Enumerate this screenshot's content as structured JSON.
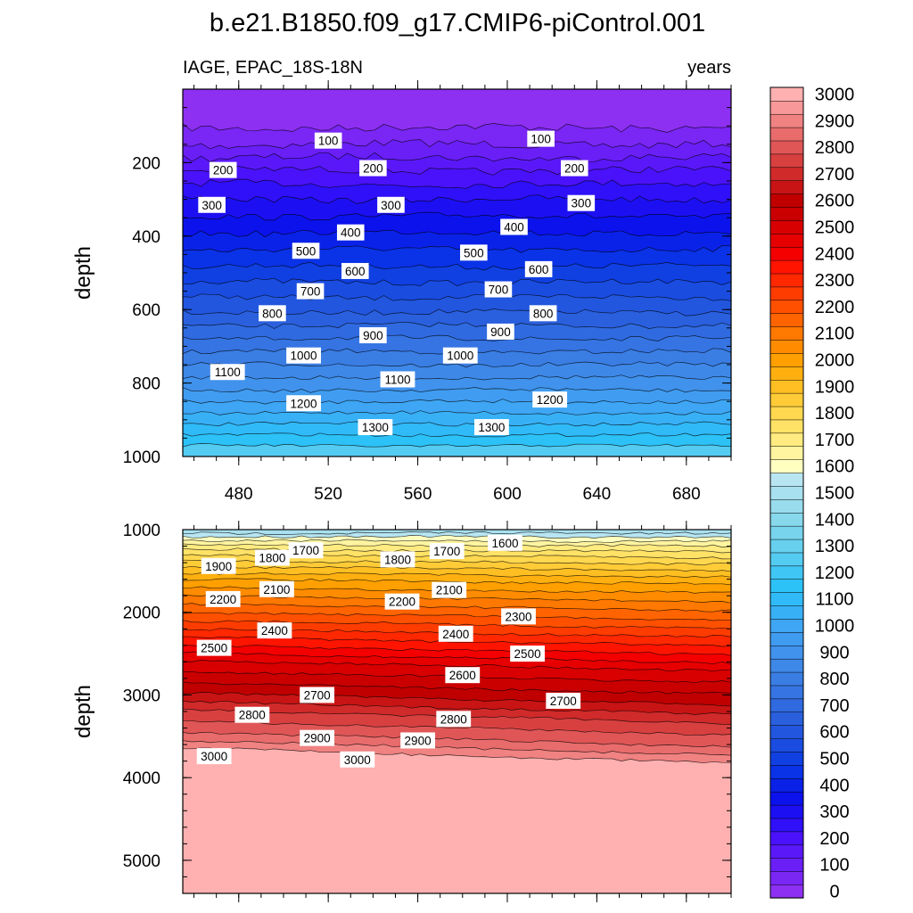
{
  "title": "b.e21.B1850.f09_g17.CMIP6-piControl.001",
  "subtitle_left": "IAGE, EPAC_18S-18N",
  "subtitle_right": "years",
  "chart_data": [
    {
      "type": "contour",
      "panel": "upper",
      "variable": "IAGE",
      "region": "EPAC_18S-18N",
      "units": "years",
      "ylabel": "depth",
      "xlabel": "",
      "xlim": [
        455,
        700
      ],
      "ylim": [
        1000,
        0
      ],
      "ylim_note": "depth increases downward",
      "xticks": [
        480,
        520,
        560,
        600,
        640,
        680
      ],
      "yticks": [
        200,
        400,
        600,
        800,
        1000
      ],
      "depth_profile": [
        [
          0,
          0
        ],
        [
          50,
          10
        ],
        [
          100,
          45
        ],
        [
          150,
          100
        ],
        [
          200,
          170
        ],
        [
          250,
          240
        ],
        [
          300,
          300
        ],
        [
          400,
          410
        ],
        [
          500,
          520
        ],
        [
          600,
          640
        ],
        [
          700,
          780
        ],
        [
          800,
          920
        ],
        [
          900,
          1080
        ],
        [
          1000,
          1250
        ]
      ],
      "contour_labels": [
        {
          "text": "100",
          "x": 520,
          "depth": 140
        },
        {
          "text": "100",
          "x": 615,
          "depth": 135
        },
        {
          "text": "200",
          "x": 473,
          "depth": 220
        },
        {
          "text": "200",
          "x": 540,
          "depth": 215
        },
        {
          "text": "200",
          "x": 630,
          "depth": 215
        },
        {
          "text": "300",
          "x": 468,
          "depth": 315
        },
        {
          "text": "300",
          "x": 548,
          "depth": 315
        },
        {
          "text": "300",
          "x": 633,
          "depth": 310
        },
        {
          "text": "400",
          "x": 530,
          "depth": 390
        },
        {
          "text": "400",
          "x": 603,
          "depth": 375
        },
        {
          "text": "500",
          "x": 510,
          "depth": 440
        },
        {
          "text": "500",
          "x": 585,
          "depth": 445
        },
        {
          "text": "600",
          "x": 532,
          "depth": 495
        },
        {
          "text": "600",
          "x": 614,
          "depth": 490
        },
        {
          "text": "700",
          "x": 512,
          "depth": 550
        },
        {
          "text": "700",
          "x": 596,
          "depth": 545
        },
        {
          "text": "800",
          "x": 495,
          "depth": 610
        },
        {
          "text": "800",
          "x": 616,
          "depth": 610
        },
        {
          "text": "900",
          "x": 540,
          "depth": 670
        },
        {
          "text": "900",
          "x": 597,
          "depth": 660
        },
        {
          "text": "1000",
          "x": 509,
          "depth": 725
        },
        {
          "text": "1000",
          "x": 579,
          "depth": 725
        },
        {
          "text": "1100",
          "x": 475,
          "depth": 770
        },
        {
          "text": "1100",
          "x": 551,
          "depth": 790
        },
        {
          "text": "1200",
          "x": 509,
          "depth": 855
        },
        {
          "text": "1200",
          "x": 619,
          "depth": 845
        },
        {
          "text": "1300",
          "x": 541,
          "depth": 920
        },
        {
          "text": "1300",
          "x": 593,
          "depth": 920
        }
      ]
    },
    {
      "type": "contour",
      "panel": "lower",
      "variable": "IAGE",
      "region": "EPAC_18S-18N",
      "units": "years",
      "ylabel": "depth",
      "xlabel": "",
      "xlim": [
        455,
        700
      ],
      "ylim": [
        5400,
        1000
      ],
      "ylim_note": "depth increases downward",
      "yticks": [
        1000,
        2000,
        3000,
        4000,
        5000
      ],
      "depth_profile": [
        [
          1000,
          1500
        ],
        [
          1050,
          1560
        ],
        [
          1100,
          1620
        ],
        [
          1200,
          1720
        ],
        [
          1400,
          1870
        ],
        [
          1600,
          2000
        ],
        [
          1800,
          2100
        ],
        [
          2000,
          2200
        ],
        [
          2200,
          2300
        ],
        [
          2400,
          2400
        ],
        [
          2600,
          2510
        ],
        [
          2800,
          2580
        ],
        [
          3000,
          2660
        ],
        [
          3200,
          2760
        ],
        [
          3400,
          2830
        ],
        [
          3500,
          2870
        ],
        [
          3600,
          2930
        ],
        [
          3700,
          2980
        ],
        [
          3780,
          3000
        ],
        [
          5400,
          3000
        ]
      ],
      "contour_labels": [
        {
          "text": "1600",
          "x": 599,
          "depth": 1160
        },
        {
          "text": "1700",
          "x": 510,
          "depth": 1250
        },
        {
          "text": "1700",
          "x": 573,
          "depth": 1260
        },
        {
          "text": "1800",
          "x": 495,
          "depth": 1340
        },
        {
          "text": "1800",
          "x": 551,
          "depth": 1360
        },
        {
          "text": "1900",
          "x": 471,
          "depth": 1440
        },
        {
          "text": "2100",
          "x": 497,
          "depth": 1720
        },
        {
          "text": "2100",
          "x": 574,
          "depth": 1730
        },
        {
          "text": "2200",
          "x": 473,
          "depth": 1840
        },
        {
          "text": "2200",
          "x": 553,
          "depth": 1870
        },
        {
          "text": "2300",
          "x": 605,
          "depth": 2050
        },
        {
          "text": "2400",
          "x": 496,
          "depth": 2220
        },
        {
          "text": "2400",
          "x": 577,
          "depth": 2260
        },
        {
          "text": "2500",
          "x": 469,
          "depth": 2430
        },
        {
          "text": "2500",
          "x": 609,
          "depth": 2500
        },
        {
          "text": "2600",
          "x": 580,
          "depth": 2760
        },
        {
          "text": "2700",
          "x": 515,
          "depth": 3000
        },
        {
          "text": "2700",
          "x": 625,
          "depth": 3070
        },
        {
          "text": "2800",
          "x": 486,
          "depth": 3240
        },
        {
          "text": "2800",
          "x": 576,
          "depth": 3290
        },
        {
          "text": "2900",
          "x": 515,
          "depth": 3520
        },
        {
          "text": "2900",
          "x": 560,
          "depth": 3550
        },
        {
          "text": "3000",
          "x": 469,
          "depth": 3740
        },
        {
          "text": "3000",
          "x": 533,
          "depth": 3780
        }
      ]
    }
  ],
  "colorbar": {
    "labels": [
      "0",
      "100",
      "200",
      "300",
      "400",
      "500",
      "600",
      "700",
      "800",
      "900",
      "1000",
      "1100",
      "1200",
      "1300",
      "1400",
      "1500",
      "1600",
      "1700",
      "1800",
      "1900",
      "2000",
      "2100",
      "2200",
      "2300",
      "2400",
      "2500",
      "2600",
      "2700",
      "2800",
      "2900",
      "3000"
    ],
    "level_min": 0,
    "level_max": 3050,
    "level_step": 50,
    "colors": [
      "#8d30f2",
      "#7a26f4",
      "#6a1ff6",
      "#5a18f8",
      "#4a12fa",
      "#2f10f8",
      "#1c10f3",
      "#0c12ec",
      "#0a22e8",
      "#0a32e6",
      "#1040e2",
      "#1a4ce0",
      "#2256de",
      "#2a60de",
      "#2f6ae0",
      "#3574e2",
      "#3a7ee4",
      "#3e88e8",
      "#4092ec",
      "#409cf0",
      "#3ea6f4",
      "#38b0f6",
      "#30baf8",
      "#2cc2f8",
      "#40c6f4",
      "#54cbf0",
      "#66d0ee",
      "#78d4ec",
      "#88d8ec",
      "#98dcee",
      "#a8e0ef",
      "#b8e5f2",
      "#ffffc0",
      "#fff4a0",
      "#ffeb80",
      "#ffe266",
      "#ffd84f",
      "#ffcc38",
      "#ffbf22",
      "#ffb010",
      "#ff9f00",
      "#ff8c00",
      "#ff7800",
      "#ff6400",
      "#ff5000",
      "#ff3c00",
      "#ff2800",
      "#ff1400",
      "#f40000",
      "#e60000",
      "#d80000",
      "#ca0000",
      "#c00000",
      "#c81414",
      "#d02a2a",
      "#d84040",
      "#e05656",
      "#e86c6c",
      "#f08282",
      "#f89898",
      "#ffb0b0"
    ]
  }
}
